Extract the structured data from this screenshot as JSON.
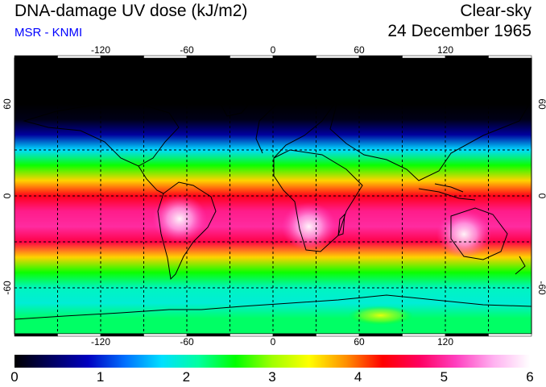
{
  "header": {
    "title": "DNA-damage UV dose (kJ/m2)",
    "subtitle": "MSR - KNMI",
    "condition": "Clear-sky",
    "date": "24 December 1965"
  },
  "colors": {
    "subtitle": "#0000ff",
    "colorscale": [
      "#000000",
      "#000060",
      "#0000c0",
      "#0070ff",
      "#00e0ff",
      "#00ffa0",
      "#00ff00",
      "#a0ff00",
      "#ffff00",
      "#ff9000",
      "#ff0000",
      "#ff0060",
      "#ff40c0",
      "#ffb0f0",
      "#ffffff"
    ]
  },
  "map": {
    "projection": "equirectangular",
    "longitude_ticks": [
      "-120",
      "-60",
      "0",
      "60",
      "120"
    ],
    "latitude_ticks": [
      "60",
      "0",
      "-60"
    ],
    "gridlines": "dashed, every 30 degrees",
    "coastlines": true
  },
  "colorbar": {
    "min": 0,
    "max": 6,
    "labels": [
      "0",
      "1",
      "2",
      "3",
      "4",
      "5",
      "6"
    ]
  },
  "chart_data": {
    "type": "heatmap",
    "title": "DNA-damage UV dose (kJ/m2)",
    "units": "kJ/m2",
    "x_range": [
      -180,
      180
    ],
    "y_range": [
      -90,
      90
    ],
    "value_range": [
      0,
      6
    ],
    "zonal_profile": [
      {
        "lat": 90,
        "value": 0.0
      },
      {
        "lat": 60,
        "value": 0.0
      },
      {
        "lat": 50,
        "value": 0.1
      },
      {
        "lat": 40,
        "value": 0.7
      },
      {
        "lat": 30,
        "value": 1.7
      },
      {
        "lat": 20,
        "value": 2.6
      },
      {
        "lat": 10,
        "value": 3.6
      },
      {
        "lat": 0,
        "value": 4.4
      },
      {
        "lat": -10,
        "value": 4.9
      },
      {
        "lat": -20,
        "value": 5.0
      },
      {
        "lat": -30,
        "value": 4.6
      },
      {
        "lat": -40,
        "value": 3.6
      },
      {
        "lat": -50,
        "value": 2.6
      },
      {
        "lat": -60,
        "value": 2.0
      },
      {
        "lat": -70,
        "value": 1.9
      },
      {
        "lat": -80,
        "value": 2.3
      },
      {
        "lat": -90,
        "value": 2.3
      }
    ],
    "hotspots": [
      {
        "region": "Andes / South America",
        "lon": -65,
        "lat": -15,
        "value": 6.0
      },
      {
        "region": "Southern Africa",
        "lon": 25,
        "lat": -20,
        "value": 5.8
      },
      {
        "region": "Australia",
        "lon": 133,
        "lat": -25,
        "value": 5.2
      },
      {
        "region": "Antarctic Plateau",
        "lon": 75,
        "lat": -78,
        "value": 3.2
      }
    ]
  }
}
